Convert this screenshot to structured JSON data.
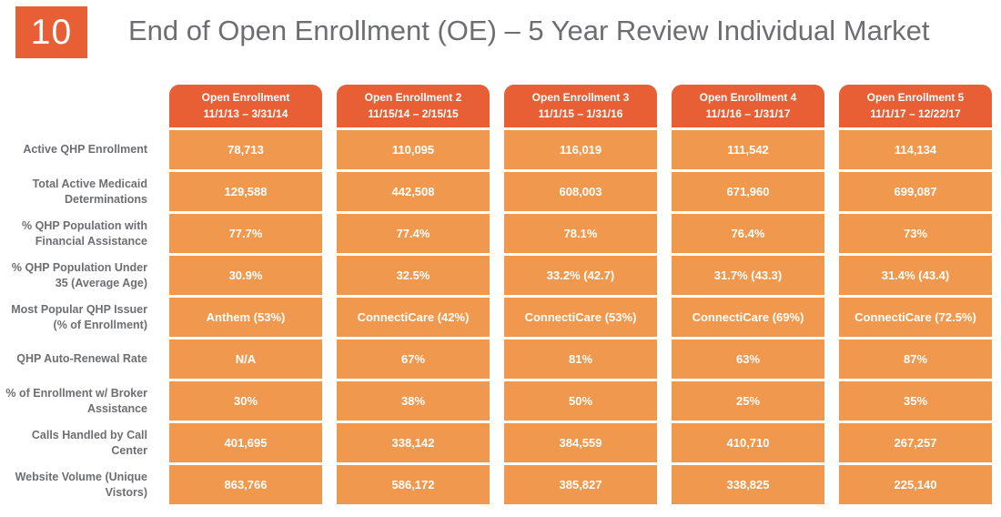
{
  "slide": {
    "number": "10",
    "title": "End of Open Enrollment (OE) – 5 Year Review Individual Market"
  },
  "colors": {
    "accent_orange": "#E85F35",
    "cell_orange": "#F0984D",
    "text_gray": "#6D6E71",
    "cell_text": "#FFFFFF",
    "background": "#FFFFFF"
  },
  "table": {
    "columns": [
      {
        "label": "Open Enrollment",
        "dates": "11/1/13 – 3/31/14"
      },
      {
        "label": "Open Enrollment 2",
        "dates": "11/15/14 – 2/15/15"
      },
      {
        "label": "Open Enrollment 3",
        "dates": "11/1/15 – 1/31/16"
      },
      {
        "label": "Open Enrollment 4",
        "dates": "11/1/16 – 1/31/17"
      },
      {
        "label": "Open Enrollment 5",
        "dates": "11/1/17 – 12/22/17"
      }
    ],
    "rows": [
      {
        "label": "Active QHP Enrollment",
        "values": [
          "78,713",
          "110,095",
          "116,019",
          "111,542",
          "114,134"
        ]
      },
      {
        "label": "Total Active Medicaid Determinations",
        "values": [
          "129,588",
          "442,508",
          "608,003",
          "671,960",
          "699,087"
        ]
      },
      {
        "label": "% QHP Population with Financial Assistance",
        "values": [
          "77.7%",
          "77.4%",
          "78.1%",
          "76.4%",
          "73%"
        ]
      },
      {
        "label": "% QHP Population Under 35 (Average Age)",
        "values": [
          "30.9%",
          "32.5%",
          "33.2% (42.7)",
          "31.7% (43.3)",
          "31.4% (43.4)"
        ]
      },
      {
        "label": "Most Popular QHP Issuer (% of Enrollment)",
        "values": [
          "Anthem (53%)",
          "ConnectiCare (42%)",
          "ConnectiCare (53%)",
          "ConnectiCare (69%)",
          "ConnectiCare (72.5%)"
        ]
      },
      {
        "label": "QHP Auto-Renewal Rate",
        "values": [
          "N/A",
          "67%",
          "81%",
          "63%",
          "87%"
        ]
      },
      {
        "label": "% of Enrollment w/ Broker Assistance",
        "values": [
          "30%",
          "38%",
          "50%",
          "25%",
          "35%"
        ]
      },
      {
        "label": "Calls Handled by Call Center",
        "values": [
          "401,695",
          "338,142",
          "384,559",
          "410,710",
          "267,257"
        ]
      },
      {
        "label": "Website Volume (Unique Vistors)",
        "values": [
          "863,766",
          "586,172",
          "385,827",
          "338,825",
          "225,140"
        ]
      }
    ]
  }
}
